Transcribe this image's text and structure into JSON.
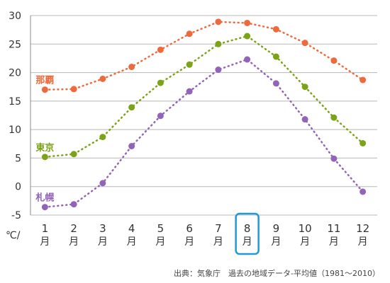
{
  "chart_data": {
    "type": "line",
    "x": [
      1,
      2,
      3,
      4,
      5,
      6,
      7,
      8,
      9,
      10,
      11,
      12
    ],
    "x_ticks": [
      {
        "num": "1",
        "unit": "月"
      },
      {
        "num": "2",
        "unit": "月"
      },
      {
        "num": "3",
        "unit": "月"
      },
      {
        "num": "4",
        "unit": "月"
      },
      {
        "num": "5",
        "unit": "月"
      },
      {
        "num": "6",
        "unit": "月"
      },
      {
        "num": "7",
        "unit": "月"
      },
      {
        "num": "8",
        "unit": "月"
      },
      {
        "num": "9",
        "unit": "月"
      },
      {
        "num": "10",
        "unit": "月"
      },
      {
        "num": "11",
        "unit": "月"
      },
      {
        "num": "12",
        "unit": "月"
      }
    ],
    "y_ticks": [
      -5,
      0,
      5,
      10,
      15,
      20,
      25,
      30
    ],
    "ylim": [
      -5,
      30
    ],
    "y_unit_label": "℃/",
    "grid": true,
    "highlighted_x": 8,
    "source_note": "出典：気象庁　過去の地域データ-平均値（1981〜2010）",
    "series": [
      {
        "name": "那覇",
        "color": "#ee6a3c",
        "values": [
          17.0,
          17.1,
          18.9,
          21.0,
          24.0,
          26.8,
          28.9,
          28.7,
          27.6,
          25.2,
          22.1,
          18.7
        ]
      },
      {
        "name": "東京",
        "color": "#7aa317",
        "values": [
          5.2,
          5.7,
          8.7,
          13.9,
          18.2,
          21.4,
          25.0,
          26.4,
          22.8,
          17.5,
          12.1,
          7.6
        ]
      },
      {
        "name": "札幌",
        "color": "#9264b8",
        "values": [
          -3.6,
          -3.1,
          0.6,
          7.1,
          12.4,
          16.7,
          20.5,
          22.3,
          18.1,
          11.8,
          4.9,
          -0.9
        ]
      }
    ]
  }
}
